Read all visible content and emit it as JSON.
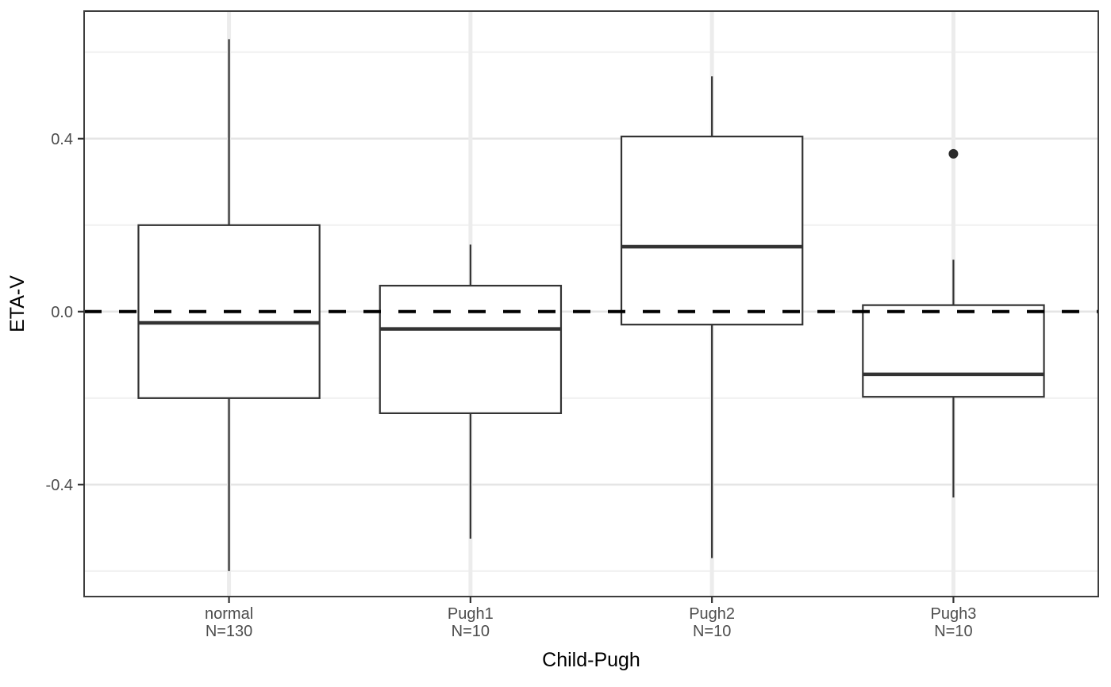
{
  "figure": {
    "background": "#ffffff"
  },
  "chart_data": {
    "type": "boxplot",
    "title": "",
    "xlabel": "Child-Pugh",
    "ylabel": "ETA-V",
    "ylim": [
      -0.659,
      0.695
    ],
    "grid": "on",
    "legend": "none",
    "y_major_ticks": [
      0.4,
      0.0,
      -0.4
    ],
    "y_tick_labels": [
      "0.4",
      "0.0",
      "-0.4"
    ],
    "y_minor_ticks": [
      0.6,
      0.2,
      -0.2,
      -0.6
    ],
    "reference_line": {
      "y": 0.0,
      "style": "dashed",
      "color": "#000000"
    },
    "categories": [
      {
        "label": "normal",
        "sublabel": "N=130"
      },
      {
        "label": "Pugh1",
        "sublabel": "N=10"
      },
      {
        "label": "Pugh2",
        "sublabel": "N=10"
      },
      {
        "label": "Pugh3",
        "sublabel": "N=10"
      }
    ],
    "series": [
      {
        "name": "normal",
        "n": 130,
        "whisker_low": -0.6,
        "q1": -0.2,
        "median": -0.026,
        "q3": 0.2,
        "whisker_high": 0.63,
        "outliers": []
      },
      {
        "name": "Pugh1",
        "n": 10,
        "whisker_low": -0.525,
        "q1": -0.235,
        "median": -0.04,
        "q3": 0.06,
        "whisker_high": 0.155,
        "outliers": []
      },
      {
        "name": "Pugh2",
        "n": 10,
        "whisker_low": -0.57,
        "q1": -0.03,
        "median": 0.15,
        "q3": 0.405,
        "whisker_high": 0.544,
        "outliers": []
      },
      {
        "name": "Pugh3",
        "n": 10,
        "whisker_low": -0.43,
        "q1": -0.197,
        "median": -0.145,
        "q3": 0.015,
        "whisker_high": 0.12,
        "outliers": [
          0.365
        ]
      }
    ],
    "style": {
      "box_fill": "#ffffff",
      "box_stroke": "#333333",
      "median_stroke": "#333333",
      "whisker_stroke": "#333333",
      "outlier_fill": "#2b2b2b",
      "dashed_line": "#000000",
      "grid_major": "#e5e5e5",
      "grid_minor": "#f0f0f0",
      "grid_vertical": "#ececec",
      "panel_border": "#3d3d3d",
      "tick_mark": "#333333",
      "tick_label": "#4d4d4d",
      "axis_title": "#000000"
    }
  }
}
